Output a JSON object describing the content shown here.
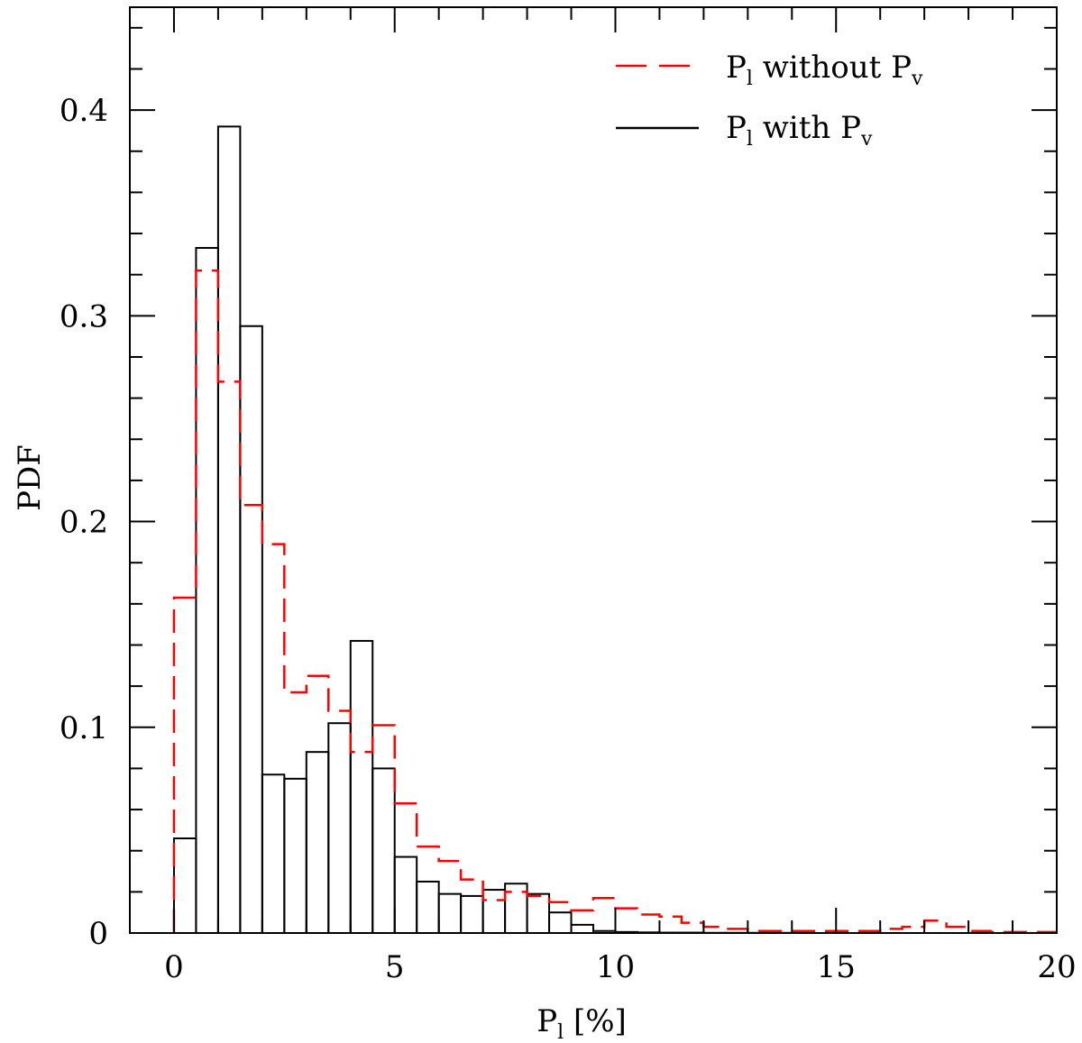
{
  "chart_data": {
    "type": "histogram",
    "xlabel": "P",
    "xlabel_sub": "l",
    "xlabel_unit": " [%]",
    "ylabel": "PDF",
    "xlim": [
      -1,
      20
    ],
    "ylim": [
      0,
      0.45
    ],
    "x_ticks": [
      0,
      5,
      10,
      15,
      20
    ],
    "x_tick_labels": [
      "0",
      "5",
      "10",
      "15",
      "20"
    ],
    "x_minor_step": 1,
    "y_ticks": [
      0,
      0.1,
      0.2,
      0.3,
      0.4
    ],
    "y_tick_labels": [
      "0",
      "0.1",
      "0.2",
      "0.3",
      "0.4"
    ],
    "y_minor_step": 0.02,
    "bin_edges": [
      0,
      0.5,
      1,
      1.5,
      2,
      2.5,
      3,
      3.5,
      4,
      4.5,
      5,
      5.5,
      6,
      6.5,
      7,
      7.5,
      8,
      8.5,
      9,
      9.5,
      10,
      10.5,
      11,
      11.5,
      12,
      12.5,
      13,
      13.5,
      14,
      14.5,
      15,
      15.5,
      16,
      16.5,
      17,
      17.5,
      18,
      18.5,
      19,
      19.5,
      20
    ],
    "series": [
      {
        "name": "P_l with P_v",
        "legend_text": "P",
        "legend_sub1": "l",
        "legend_mid": " with P",
        "legend_sub2": "v",
        "style": "solid",
        "color": "#000000",
        "values": [
          0.046,
          0.333,
          0.392,
          0.295,
          0.077,
          0.075,
          0.088,
          0.102,
          0.142,
          0.08,
          0.037,
          0.025,
          0.019,
          0.018,
          0.021,
          0.024,
          0.019,
          0.01,
          0.004,
          0.001,
          0.0005,
          0.0003,
          0.0002,
          0.0002,
          0.0001,
          0.0001,
          0.0001,
          0.0001,
          0,
          0,
          0,
          0,
          0,
          0,
          0,
          0,
          0,
          0,
          0,
          0
        ]
      },
      {
        "name": "P_l without P_v",
        "legend_text": "P",
        "legend_sub1": "l",
        "legend_mid": " without P",
        "legend_sub2": "v",
        "style": "dashed",
        "color": "#ff0000",
        "values": [
          0.163,
          0.322,
          0.268,
          0.208,
          0.189,
          0.117,
          0.125,
          0.108,
          0.088,
          0.101,
          0.063,
          0.042,
          0.035,
          0.026,
          0.016,
          0.02,
          0.018,
          0.015,
          0.011,
          0.017,
          0.012,
          0.009,
          0.008,
          0.005,
          0.003,
          0.002,
          0.001,
          0.001,
          0.001,
          0.001,
          0.001,
          0.001,
          0.002,
          0.003,
          0.006,
          0.003,
          0.001,
          0.0005,
          0.0005,
          0.0005
        ]
      }
    ]
  }
}
